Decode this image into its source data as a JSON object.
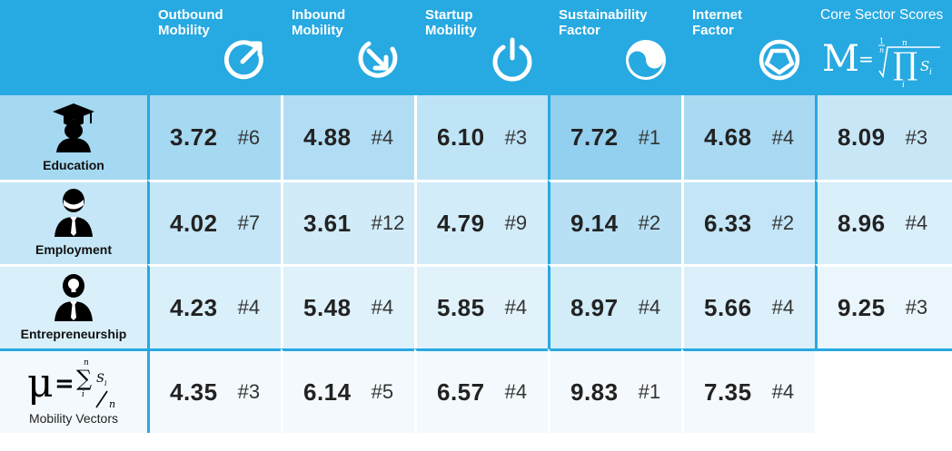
{
  "header": {
    "columns": [
      {
        "label": "Outbound\nMobility",
        "icon": "outbound-arrow-icon"
      },
      {
        "label": "Inbound\nMobility",
        "icon": "inbound-arrow-icon"
      },
      {
        "label": "Startup\nMobility",
        "icon": "power-icon"
      },
      {
        "label": "Sustainability\nFactor",
        "icon": "yin-yang-icon"
      },
      {
        "label": "Internet\nFactor",
        "icon": "globe-network-icon"
      }
    ],
    "core": {
      "label": "Core Sector Scores"
    }
  },
  "rows": [
    {
      "label": "Education",
      "icon": "graduate-icon",
      "values": [
        {
          "num": "3.72",
          "rank": "#6"
        },
        {
          "num": "4.88",
          "rank": "#4"
        },
        {
          "num": "6.10",
          "rank": "#3"
        },
        {
          "num": "7.72",
          "rank": "#1"
        },
        {
          "num": "4.68",
          "rank": "#4"
        }
      ],
      "core": {
        "num": "8.09",
        "rank": "#3"
      }
    },
    {
      "label": "Employment",
      "icon": "employee-icon",
      "values": [
        {
          "num": "4.02",
          "rank": "#7"
        },
        {
          "num": "3.61",
          "rank": "#12"
        },
        {
          "num": "4.79",
          "rank": "#9"
        },
        {
          "num": "9.14",
          "rank": "#2"
        },
        {
          "num": "6.33",
          "rank": "#2"
        }
      ],
      "core": {
        "num": "8.96",
        "rank": "#4"
      }
    },
    {
      "label": "Entrepreneurship",
      "icon": "entrepreneur-icon",
      "values": [
        {
          "num": "4.23",
          "rank": "#4"
        },
        {
          "num": "5.48",
          "rank": "#4"
        },
        {
          "num": "5.85",
          "rank": "#4"
        },
        {
          "num": "8.97",
          "rank": "#4"
        },
        {
          "num": "5.66",
          "rank": "#4"
        }
      ],
      "core": {
        "num": "9.25",
        "rank": "#3"
      }
    }
  ],
  "mobility": {
    "label": "Mobility Vectors",
    "values": [
      {
        "num": "4.35",
        "rank": "#3"
      },
      {
        "num": "6.14",
        "rank": "#5"
      },
      {
        "num": "6.57",
        "rank": "#4"
      },
      {
        "num": "9.83",
        "rank": "#1"
      },
      {
        "num": "7.35",
        "rank": "#4"
      }
    ]
  },
  "colors": {
    "header": "#27a9e1",
    "education": [
      "#a5d8f1",
      "#b1ddf4",
      "#bfe4f6",
      "#93cfee",
      "#a9daf2",
      "#c7e7f7"
    ],
    "employment": [
      "#c4e6f7",
      "#d1ebf9",
      "#d2ecf9",
      "#b8e0f5",
      "#c3e5f7",
      "#d9effa"
    ],
    "entrepreneurship": [
      "#d9eff9",
      "#dff1fa",
      "#e1f2fa",
      "#d2ecf8",
      "#dbf0fa",
      "#eaf6fc"
    ],
    "mobility": "#f3f9fd"
  }
}
